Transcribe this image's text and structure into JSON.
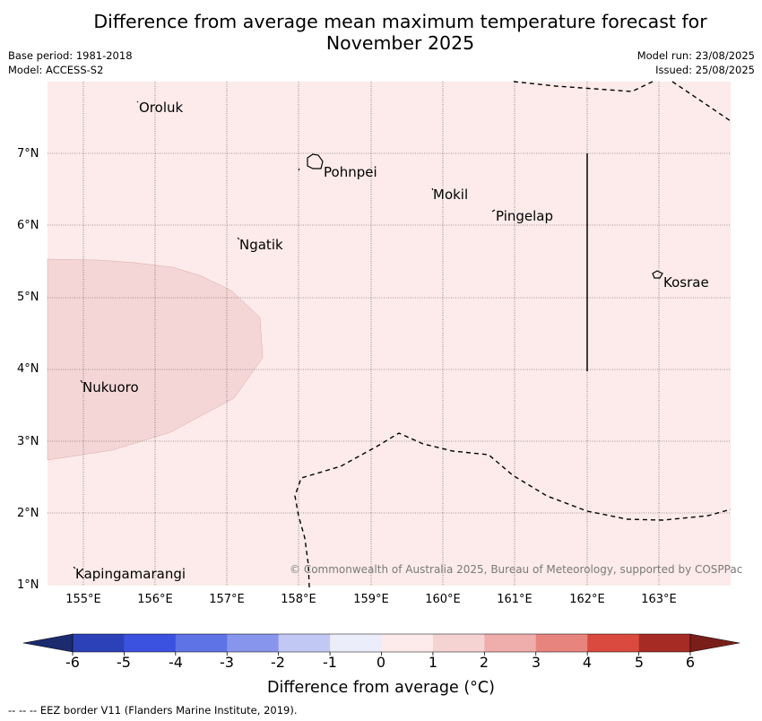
{
  "title": {
    "line1": "Difference from average mean maximum temperature forecast for",
    "line2": "November 2025"
  },
  "meta_left": {
    "base_period": "Base period: 1981-2018",
    "model": "Model: ACCESS-S2"
  },
  "meta_right": {
    "model_run": "Model run: 23/08/2025",
    "issued": "Issued: 25/08/2025"
  },
  "map": {
    "lon_range": [
      154.5,
      164.0
    ],
    "lat_range": [
      1.0,
      8.0
    ],
    "lon_ticks": [
      "155°E",
      "156°E",
      "157°E",
      "158°E",
      "159°E",
      "160°E",
      "161°E",
      "162°E",
      "163°E"
    ],
    "lat_ticks": [
      "1°N",
      "2°N",
      "3°N",
      "4°N",
      "5°N",
      "6°N",
      "7°N"
    ],
    "background_category": "0 to 1",
    "background_color": "#fcebea",
    "anomaly_region": {
      "category": "1 to 2",
      "color": "#f5d6d6"
    },
    "gridlines": true,
    "places": [
      {
        "name": "Oroluk"
      },
      {
        "name": "Pohnpei"
      },
      {
        "name": "Mokil"
      },
      {
        "name": "Pingelap"
      },
      {
        "name": "Ngatik"
      },
      {
        "name": "Kosrae"
      },
      {
        "name": "Nukuoro"
      },
      {
        "name": "Kapingamarangi"
      }
    ],
    "copyright": "© Commonwealth of Australia 2025, Bureau of Meteorology, supported by COSPPac"
  },
  "colorbar": {
    "labels": [
      "-6",
      "-5",
      "-4",
      "-3",
      "-2",
      "-1",
      "0",
      "1",
      "2",
      "3",
      "4",
      "5",
      "6"
    ],
    "colors": [
      "#253494",
      "#2c41b8",
      "#3b52e0",
      "#5d73e6",
      "#8795ec",
      "#c2c8f4",
      "#ecedfb",
      "#fcebea",
      "#f5d3d3",
      "#efadab",
      "#e8847e",
      "#da4a3e",
      "#a72b25"
    ],
    "under_color": "#1c2a6e",
    "over_color": "#7a1e1a",
    "title": "Difference from average (°C)"
  },
  "footer": "--  --  -- EEZ border V11 (Flanders Marine Institute, 2019)."
}
